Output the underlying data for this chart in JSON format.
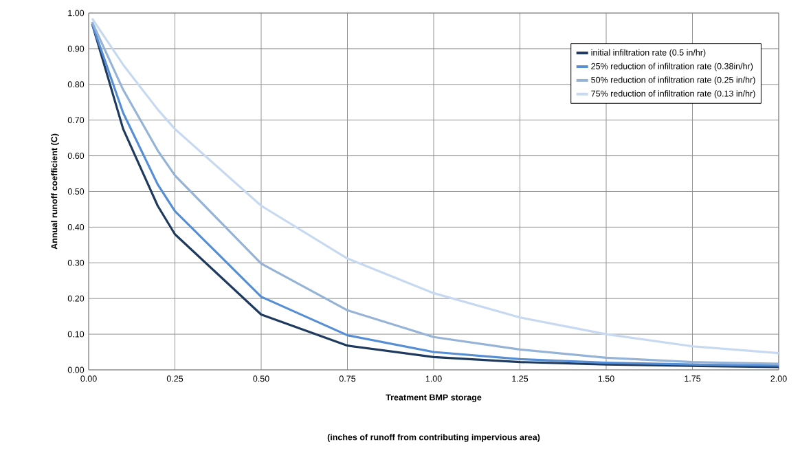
{
  "chart_data": {
    "type": "line",
    "xlabel": "Treatment BMP storage",
    "ylabel": "Annual runoff coefficient (C)",
    "annotations": [
      "(inches of runoff from contributing impervious area)"
    ],
    "x": [
      0.01,
      0.1,
      0.2,
      0.25,
      0.5,
      0.75,
      1.0,
      1.25,
      1.5,
      1.75,
      2.0
    ],
    "series": [
      {
        "name": "initial infiltration rate (0.5 in/hr)",
        "color": "#1f3a5f",
        "values": [
          0.97,
          0.675,
          0.46,
          0.38,
          0.155,
          0.068,
          0.036,
          0.022,
          0.015,
          0.011,
          0.008
        ]
      },
      {
        "name": "25% reduction of infiltration rate (0.38in/hr)",
        "color": "#558ed5",
        "values": [
          0.97,
          0.72,
          0.52,
          0.445,
          0.205,
          0.097,
          0.05,
          0.03,
          0.02,
          0.015,
          0.012
        ]
      },
      {
        "name": "50% reduction of infiltration rate (0.25 in/hr)",
        "color": "#95b3d7",
        "values": [
          0.975,
          0.785,
          0.615,
          0.545,
          0.298,
          0.167,
          0.092,
          0.057,
          0.034,
          0.022,
          0.017
        ]
      },
      {
        "name": "75% reduction of infiltration rate (0.13 in/hr)",
        "color": "#c6d9f1",
        "values": [
          0.985,
          0.855,
          0.73,
          0.675,
          0.46,
          0.312,
          0.215,
          0.147,
          0.1,
          0.066,
          0.047
        ]
      }
    ],
    "xlim": [
      0,
      2
    ],
    "ylim": [
      0,
      1
    ],
    "xticks": [
      {
        "value": 0,
        "label": "0.00"
      },
      {
        "value": 0.25,
        "label": "0.25"
      },
      {
        "value": 0.5,
        "label": "0.50"
      },
      {
        "value": 0.75,
        "label": "0.75"
      },
      {
        "value": 1,
        "label": "1.00"
      },
      {
        "value": 1.25,
        "label": "1.25"
      },
      {
        "value": 1.5,
        "label": "1.50"
      },
      {
        "value": 1.75,
        "label": "1.75"
      },
      {
        "value": 2,
        "label": "2.00"
      }
    ],
    "yticks": [
      {
        "value": 0,
        "label": "0.00"
      },
      {
        "value": 0.1,
        "label": "0.10"
      },
      {
        "value": 0.2,
        "label": "0.20"
      },
      {
        "value": 0.3,
        "label": "0.30"
      },
      {
        "value": 0.4,
        "label": "0.40"
      },
      {
        "value": 0.5,
        "label": "0.50"
      },
      {
        "value": 0.6,
        "label": "0.60"
      },
      {
        "value": 0.7,
        "label": "0.70"
      },
      {
        "value": 0.8,
        "label": "0.80"
      },
      {
        "value": 0.9,
        "label": "0.90"
      },
      {
        "value": 1,
        "label": "1.00"
      }
    ],
    "grid": true,
    "legend": "top right",
    "marker": "none",
    "line_style": "solid"
  }
}
